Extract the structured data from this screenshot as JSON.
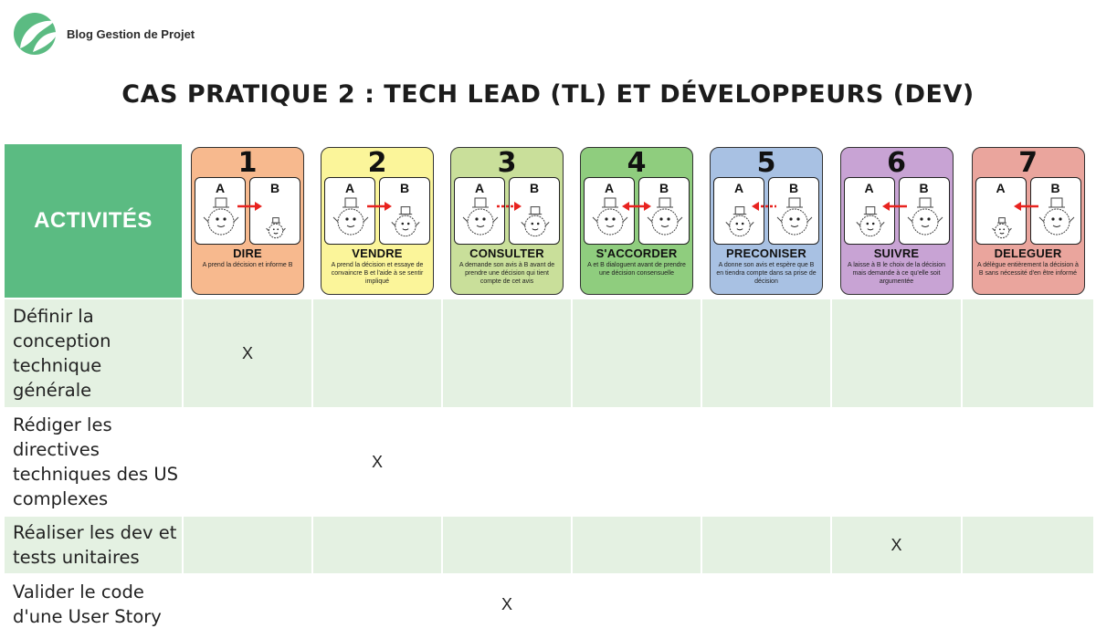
{
  "brand": {
    "name": "Blog Gestion de Projet",
    "color": "#5bbb82"
  },
  "title": "CAS PRATIQUE 2 : TECH LEAD (TL) ET DÉVELOPPEURS (DEV)",
  "activities_header": "ACTIVITÉS",
  "levels": [
    {
      "number": "1",
      "label": "DIRE",
      "desc": "A prend la décision et informe B",
      "color": "#f7b98e",
      "arrow": "right-solid",
      "a_size": "big",
      "b_size": "small"
    },
    {
      "number": "2",
      "label": "VENDRE",
      "desc": "A prend la décision et essaye de convaincre B et l'aide à se sentir impliqué",
      "color": "#fbf59a",
      "arrow": "right-solid",
      "a_size": "big",
      "b_size": "medium"
    },
    {
      "number": "3",
      "label": "CONSULTER",
      "desc": "A demande son avis à B avant de prendre une décision qui tient compte de cet avis",
      "color": "#c9df9a",
      "arrow": "right-dashed",
      "a_size": "big",
      "b_size": "medium"
    },
    {
      "number": "4",
      "label": "S'ACCORDER",
      "desc": "A et B dialoguent avant de prendre une décision consensuelle",
      "color": "#8fcd7e",
      "arrow": "both",
      "a_size": "big",
      "b_size": "big"
    },
    {
      "number": "5",
      "label": "PRECONISER",
      "desc": "A donne son avis et espère que B en tiendra compte dans sa prise de décision",
      "color": "#a8c1e3",
      "arrow": "left-dashed",
      "a_size": "medium",
      "b_size": "big"
    },
    {
      "number": "6",
      "label": "SUIVRE",
      "desc": "A laisse à B le choix de la décision mais demande à ce qu'elle soit argumentée",
      "color": "#c8a3d4",
      "arrow": "left-solid",
      "a_size": "medium",
      "b_size": "big"
    },
    {
      "number": "7",
      "label": "DELEGUER",
      "desc": "A délègue entièrement la décision à B sans nécessité d'en être informé",
      "color": "#eaa59d",
      "arrow": "left-solid",
      "a_size": "small",
      "b_size": "big"
    }
  ],
  "pane_letters": {
    "a": "A",
    "b": "B"
  },
  "rows": [
    {
      "activity": "Définir la conception technique générale",
      "mark_level": 1,
      "mark": "X"
    },
    {
      "activity": "Rédiger les directives techniques des US complexes",
      "mark_level": 2,
      "mark": "X"
    },
    {
      "activity": "Réaliser les dev et tests unitaires",
      "mark_level": 6,
      "mark": "X"
    },
    {
      "activity": "Valider le code d'une User Story",
      "mark_level": 3,
      "mark": "X"
    }
  ]
}
